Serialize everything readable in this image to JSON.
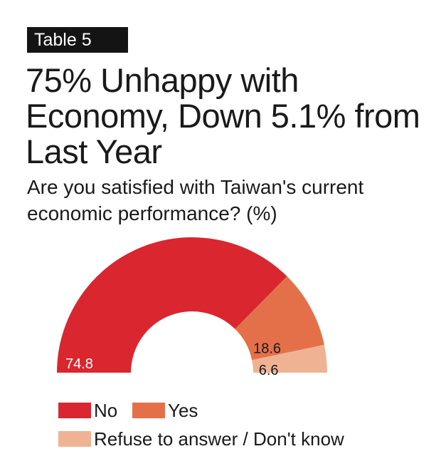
{
  "badge": "Table 5",
  "title": "75% Unhappy with Economy, Down 5.1% from Last Year",
  "subtitle": "Are you satisfied with Taiwan's current economic performance? (%)",
  "chart_data": {
    "type": "pie",
    "style": "half-donut",
    "categories": [
      "No",
      "Yes",
      "Refuse to answer / Don't know"
    ],
    "values": [
      74.8,
      18.6,
      6.6
    ],
    "value_labels": [
      "74.8",
      "18.6",
      "6.6"
    ],
    "colors": [
      "#d9262f",
      "#e4704a",
      "#efb393"
    ],
    "title": "",
    "legend_placement": "bottom-left"
  },
  "legend": [
    {
      "label": "No",
      "color": "#d9262f"
    },
    {
      "label": "Yes",
      "color": "#e4704a"
    },
    {
      "label": "Refuse to answer / Don't know",
      "color": "#efb393"
    }
  ]
}
